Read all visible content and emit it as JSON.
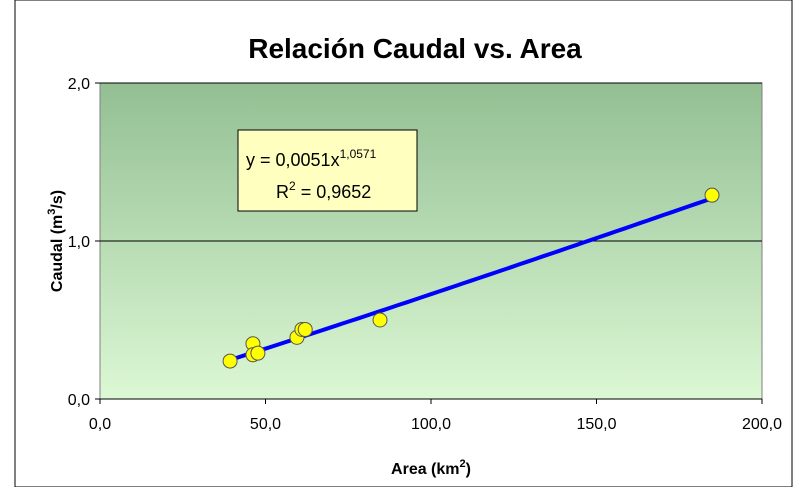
{
  "chart_data": {
    "type": "scatter",
    "title": "Relación Caudal vs. Area",
    "x_label": {
      "text": "Area (km",
      "sup": "2",
      "tail": ")"
    },
    "y_label": {
      "text": "Caudal (m",
      "sup": "3",
      "tail": "/s)"
    },
    "x": [
      39.3,
      46.2,
      46.2,
      47.7,
      59.5,
      61.0,
      62.0,
      84.6,
      184.9
    ],
    "values": [
      0.24,
      0.35,
      0.28,
      0.29,
      0.39,
      0.44,
      0.44,
      0.5,
      1.29
    ],
    "color": "#ffff00",
    "xlim": [
      0,
      200
    ],
    "xticks": [
      {
        "value": 0,
        "label": "0,0"
      },
      {
        "value": 50,
        "label": "50,0"
      },
      {
        "value": 100,
        "label": "100,0"
      },
      {
        "value": 150,
        "label": "150,0"
      },
      {
        "value": 200,
        "label": "200,0"
      }
    ],
    "ylim": [
      0,
      2
    ],
    "yticks": [
      {
        "value": 0,
        "label": "0,0"
      },
      {
        "value": 1,
        "label": "1,0"
      },
      {
        "value": 2,
        "label": "2,0"
      }
    ],
    "grid": true,
    "trendline": {
      "type": "power",
      "color": "#0000ff",
      "coefficient": 0.0051,
      "exponent": 1.0571,
      "r_squared": 0.9652,
      "y_symbol": "y",
      "eq_sign": "=",
      "coefficient_label": "0,0051",
      "variable": "x",
      "exponent_label": "1,0571",
      "r2_symbol": "R",
      "r2_power": "2",
      "r2_label": "0,9652"
    }
  }
}
